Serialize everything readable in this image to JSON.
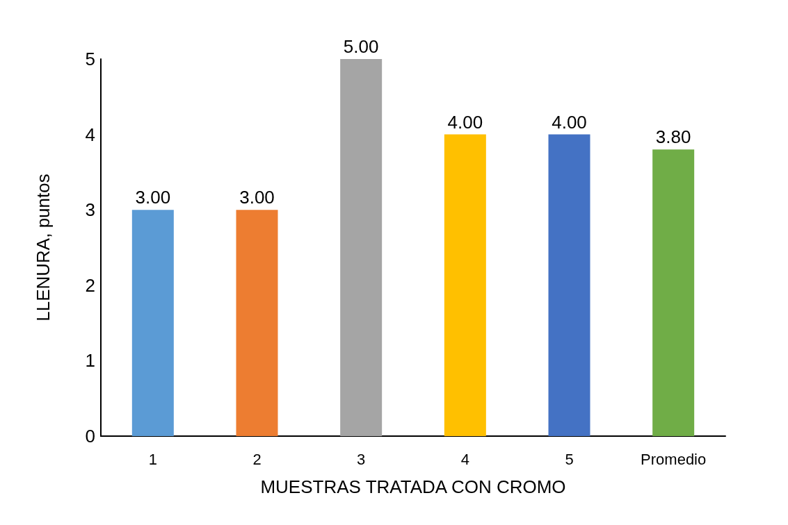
{
  "chart_data": {
    "type": "bar",
    "xlabel": "MUESTRAS TRATADA CON CROMO",
    "ylabel": "LLENURA, puntos",
    "categories": [
      "1",
      "2",
      "3",
      "4",
      "5",
      "Promedio"
    ],
    "values": [
      3,
      3,
      5,
      4,
      4,
      3.8
    ],
    "colors": [
      "#5b9bd5",
      "#ed7d31",
      "#a5a5a5",
      "#ffc000",
      "#4472c4",
      "#70ad47"
    ],
    "value_labels": [
      "3.00",
      "3.00",
      "5.00",
      "4.00",
      "4.00",
      "3.80"
    ],
    "ylim": [
      0,
      5
    ],
    "yticks": [
      0,
      1,
      2,
      3,
      4,
      5
    ],
    "grid": false
  }
}
